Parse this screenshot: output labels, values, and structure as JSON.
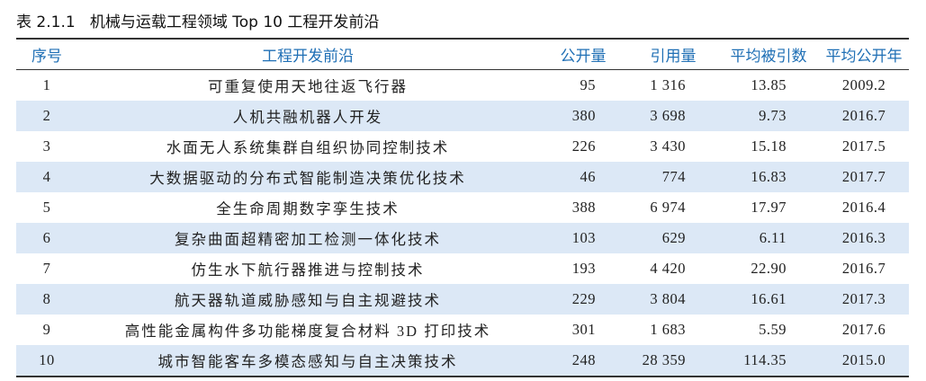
{
  "title": "表 2.1.1   机械与运载工程领域 Top 10 工程开发前沿",
  "table": {
    "headers": [
      "序号",
      "工程开发前沿",
      "公开量",
      "引用量",
      "平均被引数",
      "平均公开年"
    ],
    "rows": [
      [
        "1",
        "可重复使用天地往返飞行器",
        "95",
        "1 316",
        "13.85",
        "2009.2"
      ],
      [
        "2",
        "人机共融机器人开发",
        "380",
        "3 698",
        "9.73",
        "2016.7"
      ],
      [
        "3",
        "水面无人系统集群自组织协同控制技术",
        "226",
        "3 430",
        "15.18",
        "2017.5"
      ],
      [
        "4",
        "大数据驱动的分布式智能制造决策优化技术",
        "46",
        "774",
        "16.83",
        "2017.7"
      ],
      [
        "5",
        "全生命周期数字孪生技术",
        "388",
        "6 974",
        "17.97",
        "2016.4"
      ],
      [
        "6",
        "复杂曲面超精密加工检测一体化技术",
        "103",
        "629",
        "6.11",
        "2016.3"
      ],
      [
        "7",
        "仿生水下航行器推进与控制技术",
        "193",
        "4 420",
        "22.90",
        "2016.7"
      ],
      [
        "8",
        "航天器轨道威胁感知与自主规避技术",
        "229",
        "3 804",
        "16.61",
        "2017.3"
      ],
      [
        "9",
        "高性能金属构件多功能梯度复合材料 3D 打印技术",
        "301",
        "1 683",
        "5.59",
        "2017.6"
      ],
      [
        "10",
        "城市智能客车多模态感知与自主决策技术",
        "248",
        "28 359",
        "114.35",
        "2015.0"
      ]
    ]
  }
}
